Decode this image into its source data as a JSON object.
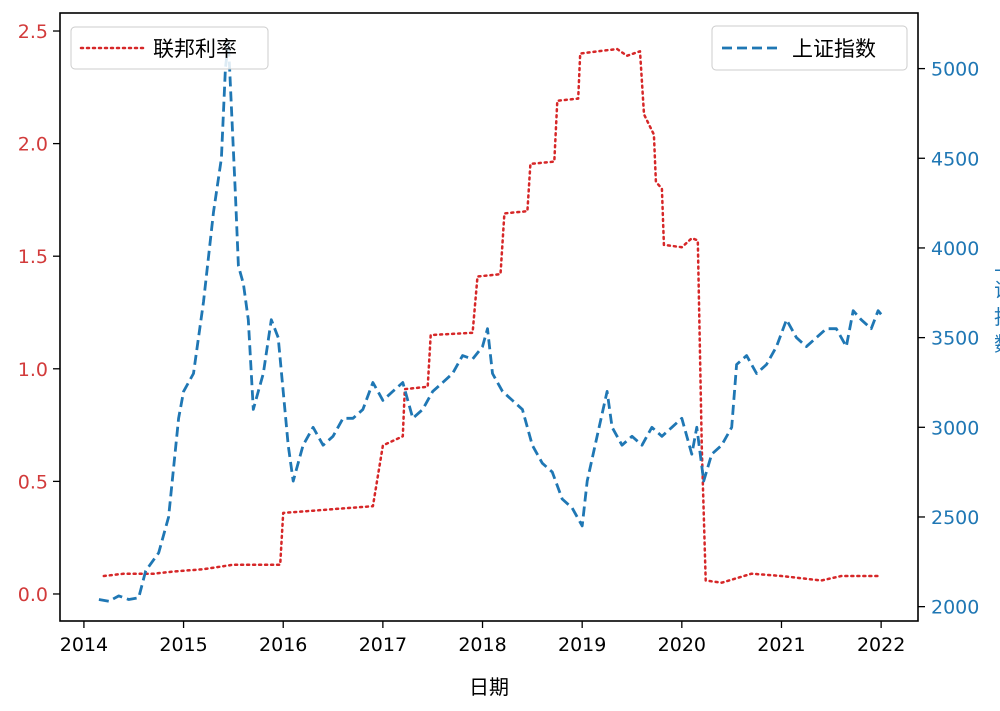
{
  "chart_data": {
    "type": "line",
    "xlabel": "日期",
    "x_ticks": [
      "2014",
      "2015",
      "2016",
      "2017",
      "2018",
      "2019",
      "2020",
      "2021",
      "2022"
    ],
    "x_range": [
      2013.76,
      2022.37
    ],
    "left_axis": {
      "range": [
        -0.12,
        2.58
      ],
      "ticks": [
        "0.0",
        "0.5",
        "1.0",
        "1.5",
        "2.0",
        "2.5"
      ],
      "color": "#d23b3b"
    },
    "right_axis": {
      "range": [
        1920,
        5310
      ],
      "ticks": [
        "2000",
        "2500",
        "3000",
        "3500",
        "4000",
        "4500",
        "5000"
      ],
      "label": "上\n证\n指\n数",
      "color": "#1f77b4"
    },
    "legend_left": {
      "label": "联邦利率",
      "placement": "top-left"
    },
    "legend_right": {
      "label": "上证指数",
      "placement": "top-right"
    },
    "series": [
      {
        "name": "联邦利率",
        "axis": "left",
        "color": "#d62728",
        "style": "dotted",
        "points": [
          [
            2014.2,
            0.08
          ],
          [
            2014.4,
            0.09
          ],
          [
            2014.7,
            0.09
          ],
          [
            2014.9,
            0.1
          ],
          [
            2015.2,
            0.11
          ],
          [
            2015.5,
            0.13
          ],
          [
            2015.8,
            0.13
          ],
          [
            2015.97,
            0.13
          ],
          [
            2016.0,
            0.36
          ],
          [
            2016.3,
            0.37
          ],
          [
            2016.6,
            0.38
          ],
          [
            2016.9,
            0.39
          ],
          [
            2017.0,
            0.66
          ],
          [
            2017.2,
            0.7
          ],
          [
            2017.22,
            0.91
          ],
          [
            2017.45,
            0.92
          ],
          [
            2017.48,
            1.15
          ],
          [
            2017.9,
            1.16
          ],
          [
            2017.95,
            1.41
          ],
          [
            2018.18,
            1.42
          ],
          [
            2018.22,
            1.69
          ],
          [
            2018.45,
            1.7
          ],
          [
            2018.48,
            1.91
          ],
          [
            2018.72,
            1.92
          ],
          [
            2018.75,
            2.19
          ],
          [
            2018.96,
            2.2
          ],
          [
            2018.98,
            2.4
          ],
          [
            2019.35,
            2.42
          ],
          [
            2019.45,
            2.39
          ],
          [
            2019.58,
            2.41
          ],
          [
            2019.62,
            2.13
          ],
          [
            2019.72,
            2.04
          ],
          [
            2019.74,
            1.83
          ],
          [
            2019.8,
            1.8
          ],
          [
            2019.82,
            1.55
          ],
          [
            2020.0,
            1.54
          ],
          [
            2020.1,
            1.58
          ],
          [
            2020.16,
            1.57
          ],
          [
            2020.2,
            0.65
          ],
          [
            2020.24,
            0.06
          ],
          [
            2020.4,
            0.05
          ],
          [
            2020.7,
            0.09
          ],
          [
            2021.0,
            0.08
          ],
          [
            2021.4,
            0.06
          ],
          [
            2021.6,
            0.08
          ],
          [
            2021.8,
            0.08
          ],
          [
            2022.0,
            0.08
          ]
        ]
      },
      {
        "name": "上证指数",
        "axis": "right",
        "color": "#1f77b4",
        "style": "dashed",
        "points": [
          [
            2014.15,
            2040
          ],
          [
            2014.25,
            2030
          ],
          [
            2014.35,
            2060
          ],
          [
            2014.45,
            2040
          ],
          [
            2014.55,
            2050
          ],
          [
            2014.62,
            2200
          ],
          [
            2014.75,
            2300
          ],
          [
            2014.85,
            2500
          ],
          [
            2014.95,
            3050
          ],
          [
            2015.0,
            3200
          ],
          [
            2015.1,
            3300
          ],
          [
            2015.2,
            3700
          ],
          [
            2015.3,
            4200
          ],
          [
            2015.38,
            4500
          ],
          [
            2015.42,
            5000
          ],
          [
            2015.45,
            5150
          ],
          [
            2015.52,
            4300
          ],
          [
            2015.55,
            3900
          ],
          [
            2015.6,
            3800
          ],
          [
            2015.65,
            3600
          ],
          [
            2015.7,
            3100
          ],
          [
            2015.75,
            3200
          ],
          [
            2015.8,
            3300
          ],
          [
            2015.88,
            3600
          ],
          [
            2015.95,
            3500
          ],
          [
            2016.0,
            3200
          ],
          [
            2016.05,
            2900
          ],
          [
            2016.1,
            2700
          ],
          [
            2016.2,
            2900
          ],
          [
            2016.3,
            3000
          ],
          [
            2016.4,
            2900
          ],
          [
            2016.5,
            2950
          ],
          [
            2016.6,
            3050
          ],
          [
            2016.7,
            3050
          ],
          [
            2016.8,
            3100
          ],
          [
            2016.9,
            3250
          ],
          [
            2017.0,
            3150
          ],
          [
            2017.1,
            3200
          ],
          [
            2017.2,
            3250
          ],
          [
            2017.3,
            3050
          ],
          [
            2017.4,
            3100
          ],
          [
            2017.5,
            3200
          ],
          [
            2017.6,
            3250
          ],
          [
            2017.7,
            3300
          ],
          [
            2017.8,
            3400
          ],
          [
            2017.9,
            3380
          ],
          [
            2018.0,
            3450
          ],
          [
            2018.05,
            3550
          ],
          [
            2018.1,
            3300
          ],
          [
            2018.2,
            3200
          ],
          [
            2018.3,
            3150
          ],
          [
            2018.4,
            3100
          ],
          [
            2018.5,
            2900
          ],
          [
            2018.6,
            2800
          ],
          [
            2018.7,
            2750
          ],
          [
            2018.8,
            2600
          ],
          [
            2018.9,
            2550
          ],
          [
            2019.0,
            2450
          ],
          [
            2019.05,
            2700
          ],
          [
            2019.15,
            2950
          ],
          [
            2019.25,
            3200
          ],
          [
            2019.3,
            3000
          ],
          [
            2019.4,
            2900
          ],
          [
            2019.5,
            2950
          ],
          [
            2019.6,
            2900
          ],
          [
            2019.7,
            3000
          ],
          [
            2019.8,
            2950
          ],
          [
            2019.9,
            3000
          ],
          [
            2020.0,
            3050
          ],
          [
            2020.1,
            2850
          ],
          [
            2020.15,
            3000
          ],
          [
            2020.22,
            2700
          ],
          [
            2020.3,
            2850
          ],
          [
            2020.4,
            2900
          ],
          [
            2020.5,
            3000
          ],
          [
            2020.55,
            3350
          ],
          [
            2020.65,
            3400
          ],
          [
            2020.75,
            3300
          ],
          [
            2020.85,
            3350
          ],
          [
            2020.95,
            3450
          ],
          [
            2021.05,
            3600
          ],
          [
            2021.15,
            3500
          ],
          [
            2021.25,
            3450
          ],
          [
            2021.35,
            3500
          ],
          [
            2021.45,
            3550
          ],
          [
            2021.55,
            3550
          ],
          [
            2021.65,
            3450
          ],
          [
            2021.72,
            3650
          ],
          [
            2021.8,
            3600
          ],
          [
            2021.9,
            3550
          ],
          [
            2021.97,
            3650
          ],
          [
            2022.0,
            3630
          ]
        ]
      }
    ]
  }
}
